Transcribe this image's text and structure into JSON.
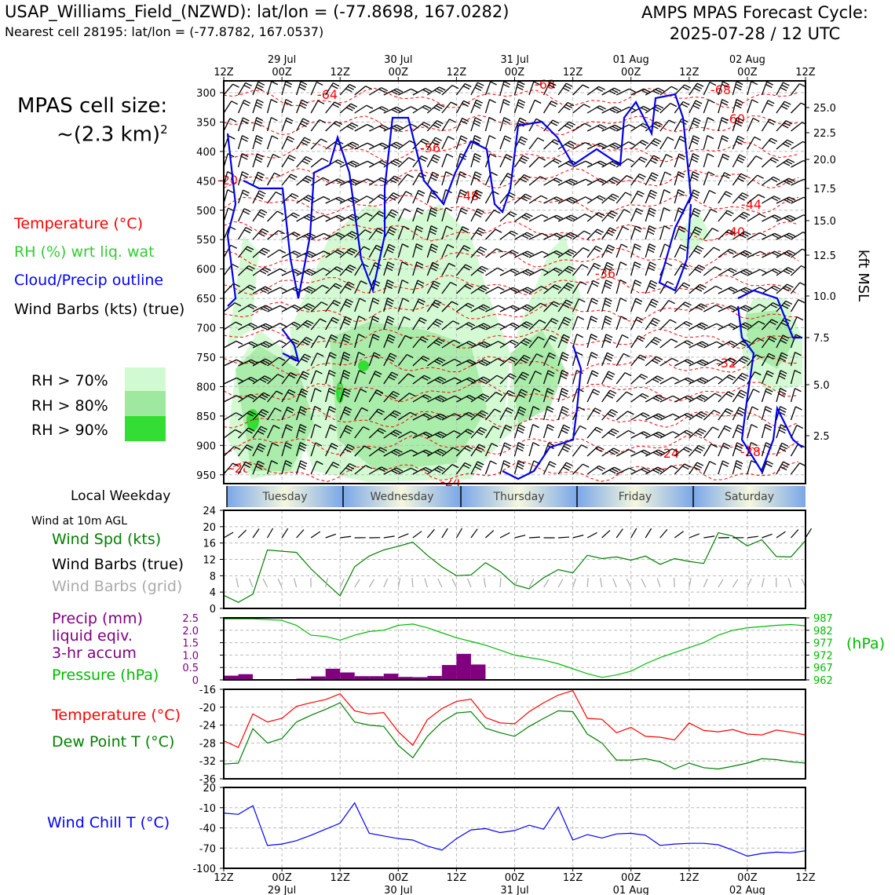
{
  "header": {
    "title_left": "USAP_Williams_Field_(NZWD): lat/lon = (-77.8698, 167.0282)",
    "subtitle_left": "Nearest cell 28195: lat/lon = (-77.8782, 167.0537)",
    "title_right_1": "AMPS MPAS Forecast Cycle:",
    "title_right_2": "2025-07-28 / 12 UTC"
  },
  "cell_size": {
    "line1": "MPAS cell size:",
    "line2": "~(2.3 km)",
    "sup": "2"
  },
  "legend": {
    "temperature": "Temperature (°C)",
    "rh": "RH (%) wrt liq. wat",
    "cloud": "Cloud/Precip outline",
    "barbs": "Wind Barbs (kts) (true)",
    "rh70": "RH > 70%",
    "rh80": "RH > 80%",
    "rh90": "RH > 90%",
    "rh70_color": "#d2fad2",
    "rh80_color": "#9fe89f",
    "rh90_color": "#33dd33"
  },
  "time_axis": {
    "top_ticks": [
      "12Z",
      "00Z",
      "12Z",
      "00Z",
      "12Z",
      "00Z",
      "12Z",
      "00Z",
      "12Z",
      "00Z",
      "12Z"
    ],
    "dates": [
      "29 Jul",
      "30 Jul",
      "31 Jul",
      "01 Aug",
      "02 Aug"
    ]
  },
  "profile": {
    "pressure_ticks": [
      "300",
      "350",
      "400",
      "450",
      "500",
      "550",
      "600",
      "650",
      "700",
      "750",
      "800",
      "850",
      "900",
      "950"
    ],
    "kft_ticks": [
      "25.0",
      "22.5",
      "20.0",
      "17.5",
      "15.0",
      "12.5",
      "10.0",
      "7.5",
      "5.0",
      "2.5"
    ],
    "kft_label": "kft MSL",
    "temp_labels": [
      "-64",
      "-68",
      "-68",
      "-60",
      "-56",
      "-48",
      "-44",
      "-40",
      "-36",
      "-32",
      "-36",
      "-28",
      "-24",
      "-28",
      "-24",
      "-20",
      "-24",
      "-20",
      "-2"
    ]
  },
  "weekday": {
    "title": "Local Weekday",
    "days": [
      "Tuesday",
      "Wednesday",
      "Thursday",
      "Friday",
      "Saturday"
    ]
  },
  "wind_panel": {
    "top_label": "Wind at 10m AGL",
    "spd_label": "Wind Spd (kts)",
    "barbs_true": "Wind Barbs (true)",
    "barbs_grid": "Wind Barbs (grid)",
    "yticks": [
      "0",
      "4",
      "8",
      "12",
      "16",
      "20",
      "24"
    ]
  },
  "precip_panel": {
    "precip_l1": "Precip (mm)",
    "precip_l2": "liquid eqiv.",
    "precip_l3": "3-hr accum",
    "pressure_label": "Pressure (hPa)",
    "hpa_unit": "(hPa)",
    "left_ticks": [
      "0",
      "0.5",
      "1.0",
      "1.5",
      "2.0",
      "2.5"
    ],
    "right_ticks": [
      "962",
      "967",
      "972",
      "977",
      "982",
      "987"
    ]
  },
  "temp_panel": {
    "temp_label": "Temperature (°C)",
    "dew_label": "Dew Point T (°C)",
    "yticks": [
      "-36",
      "-32",
      "-28",
      "-24",
      "-20",
      "-16"
    ]
  },
  "chill_panel": {
    "label": "Wind Chill T (°C)",
    "yticks": [
      "-100",
      "-70",
      "-40",
      "-10",
      "20"
    ]
  },
  "chart_data": [
    {
      "type": "line",
      "title": "Wind at 10m AGL",
      "ylabel": "Wind Spd (kts)",
      "ylim": [
        0,
        24
      ],
      "x_hours_from_start": [
        0,
        3,
        6,
        9,
        12,
        15,
        18,
        21,
        24,
        27,
        30,
        33,
        36,
        39,
        42,
        45,
        48,
        51,
        54,
        57,
        60,
        63,
        66,
        69,
        72,
        75,
        78,
        81,
        84,
        87,
        90,
        93,
        96,
        99,
        102,
        105,
        108,
        111,
        114,
        117,
        120
      ],
      "series": [
        {
          "name": "Wind Spd (kts)",
          "color": "#008000",
          "values": [
            3.2,
            1.5,
            3.5,
            14.3,
            14,
            13.7,
            9.7,
            6.3,
            3.1,
            10.2,
            12.8,
            14.3,
            15.2,
            16.2,
            13,
            10.2,
            8,
            8.2,
            11.2,
            9,
            5.8,
            4.8,
            7.5,
            9.5,
            8.7,
            13,
            12.2,
            12.6,
            11.8,
            12.8,
            10.8,
            12.2,
            11.5,
            11,
            18.5,
            17.7,
            15.3,
            16.8,
            12.7,
            12.6,
            16.6
          ]
        }
      ]
    },
    {
      "type": "bar",
      "title": "Precip 3-hr accum",
      "ylabel": "Precip (mm)",
      "ylim": [
        0,
        2.5
      ],
      "x_hours_from_start": [
        0,
        3,
        6,
        9,
        12,
        15,
        18,
        21,
        24,
        27,
        30,
        33,
        36,
        39,
        42,
        45,
        48,
        51,
        54,
        57,
        60,
        63,
        66,
        69,
        72,
        75,
        78,
        81,
        84,
        87,
        90,
        93,
        96,
        99,
        102,
        105,
        108,
        111,
        114,
        117
      ],
      "values": [
        0.17,
        0.23,
        0.03,
        0.02,
        0.03,
        0.05,
        0.14,
        0.45,
        0.3,
        0.15,
        0.15,
        0.25,
        0.12,
        0.11,
        0.16,
        0.6,
        1.05,
        0.62,
        0,
        0,
        0,
        0,
        0,
        0,
        0,
        0,
        0,
        0,
        0,
        0,
        0,
        0,
        0,
        0,
        0,
        0,
        0,
        0,
        0,
        0
      ]
    },
    {
      "type": "line",
      "title": "Pressure",
      "ylabel": "Pressure (hPa)",
      "ylim": [
        962,
        987
      ],
      "x_hours_from_start": [
        0,
        6,
        12,
        15,
        18,
        21,
        24,
        27,
        30,
        33,
        36,
        39,
        42,
        45,
        48,
        51,
        54,
        57,
        60,
        63,
        66,
        69,
        72,
        75,
        78,
        81,
        84,
        87,
        90,
        93,
        96,
        99,
        102,
        105,
        108,
        111,
        114,
        117,
        120
      ],
      "series": [
        {
          "name": "Pressure (hPa)",
          "color": "#00bb00",
          "values": [
            986.6,
            986.6,
            986.0,
            984,
            980,
            979.5,
            978,
            980,
            981.5,
            982,
            984,
            984.5,
            983,
            981,
            979,
            977.5,
            976,
            974,
            972,
            971,
            970,
            968.5,
            966.5,
            964.5,
            963,
            964,
            965.5,
            968.5,
            971,
            973,
            975,
            977,
            980,
            982,
            983,
            983.5,
            984,
            984.3,
            983.8
          ]
        }
      ]
    },
    {
      "type": "line",
      "title": "Temperature / Dew Point",
      "ylabel": "°C",
      "ylim": [
        -36,
        -16
      ],
      "x_hours_from_start": [
        0,
        3,
        6,
        9,
        12,
        15,
        18,
        21,
        24,
        27,
        30,
        33,
        36,
        39,
        42,
        45,
        48,
        51,
        54,
        57,
        60,
        63,
        66,
        69,
        72,
        75,
        78,
        81,
        84,
        87,
        90,
        93,
        96,
        99,
        102,
        105,
        108,
        111,
        114,
        117,
        120
      ],
      "series": [
        {
          "name": "Temperature (°C)",
          "color": "#ff0000",
          "values": [
            -27.5,
            -29,
            -21.5,
            -23.3,
            -22.5,
            -19.8,
            -19,
            -18.3,
            -17,
            -20.8,
            -21.5,
            -21.2,
            -25.5,
            -28.5,
            -22.8,
            -20.3,
            -18.7,
            -18.2,
            -22.3,
            -23.5,
            -23.7,
            -21,
            -19,
            -17.3,
            -16.3,
            -22.5,
            -22.7,
            -25.7,
            -24.5,
            -26.5,
            -26.7,
            -27.3,
            -23.5,
            -25.2,
            -25.5,
            -25,
            -26,
            -26.2,
            -25.1,
            -25.6,
            -26.2
          ]
        },
        {
          "name": "Dew Point T (°C)",
          "color": "#008000",
          "values": [
            -32.7,
            -32.5,
            -24.8,
            -28,
            -27,
            -23.3,
            -21.8,
            -20.5,
            -19,
            -23.3,
            -24,
            -24.3,
            -28.5,
            -31.3,
            -26.5,
            -23.3,
            -21.3,
            -21,
            -24.7,
            -25.7,
            -26.5,
            -24.3,
            -22.5,
            -20.8,
            -21,
            -26,
            -28,
            -31.8,
            -31.8,
            -31.5,
            -32.2,
            -33.8,
            -32.5,
            -33.5,
            -33.8,
            -33.2,
            -32.5,
            -31.5,
            -31.7,
            -32.2,
            -32.5
          ]
        }
      ]
    },
    {
      "type": "line",
      "title": "Wind Chill",
      "ylabel": "Wind Chill T (°C)",
      "ylim": [
        -100,
        20
      ],
      "x_hours_from_start": [
        0,
        3,
        6,
        9,
        12,
        15,
        18,
        21,
        24,
        27,
        30,
        33,
        36,
        39,
        42,
        45,
        48,
        51,
        54,
        57,
        60,
        63,
        66,
        69,
        72,
        75,
        78,
        81,
        84,
        87,
        90,
        93,
        96,
        99,
        102,
        105,
        108,
        111,
        114,
        117,
        120
      ],
      "series": [
        {
          "name": "Wind Chill T (°C)",
          "color": "#0000ff",
          "values": [
            -18,
            -20,
            -7,
            -66,
            -64,
            -59,
            -51,
            -42,
            -33,
            -3,
            -48,
            -52,
            -56,
            -58,
            -67,
            -73,
            -56,
            -43,
            -41,
            -47,
            -44,
            -36,
            -42,
            -9,
            -58,
            -50,
            -55,
            -49,
            -48,
            -51,
            -66,
            -64,
            -63,
            -63,
            -65,
            -73,
            -82,
            -78,
            -76,
            -77,
            -74
          ]
        }
      ]
    }
  ]
}
